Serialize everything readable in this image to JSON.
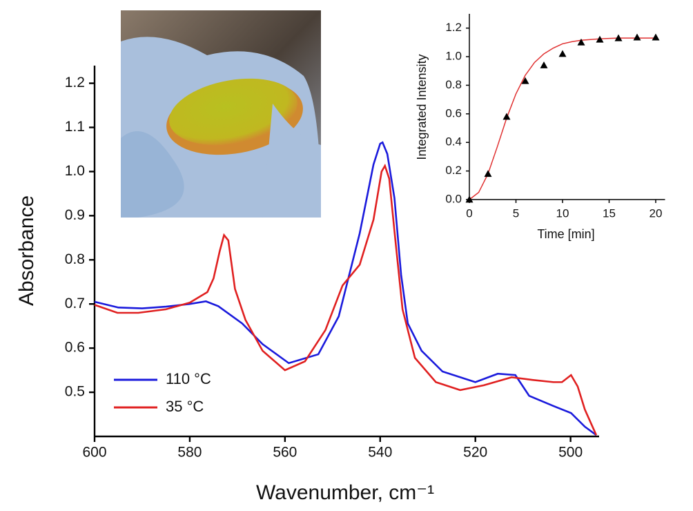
{
  "chart_data": [
    {
      "type": "line",
      "x_label": "Wavenumber, cm⁻¹",
      "y_label": "Absorbance",
      "xlim": [
        600,
        494
      ],
      "ylim": [
        0.4,
        1.24
      ],
      "xticks": [
        600,
        580,
        560,
        540,
        520,
        500
      ],
      "yticks": [
        0.5,
        0.6,
        0.7,
        0.8,
        0.9,
        {
          "value": 1.0,
          "label": "1.0"
        },
        1.1,
        1.2
      ],
      "legend": "lower left",
      "series": [
        {
          "name": "110 °C",
          "color": "#1a1adc",
          "x": [
            600,
            595,
            590,
            585,
            580,
            576.6,
            574,
            569,
            564.7,
            559.2,
            553,
            548.7,
            544.3,
            541.4,
            540,
            539.5,
            538.5,
            537,
            535.6,
            534.2,
            531.3,
            526.9,
            520,
            515.3,
            511.6,
            508.7,
            503.6,
            499.9,
            497,
            494.6
          ],
          "values": [
            0.705,
            0.692,
            0.69,
            0.694,
            0.7,
            0.706,
            0.695,
            0.656,
            0.609,
            0.566,
            0.586,
            0.672,
            0.86,
            1.016,
            1.063,
            1.066,
            1.04,
            0.94,
            0.766,
            0.656,
            0.594,
            0.547,
            0.523,
            0.542,
            0.539,
            0.492,
            0.469,
            0.453,
            0.422,
            0.403
          ]
        },
        {
          "name": "35 °C",
          "color": "#e02020",
          "x": [
            600,
            595.2,
            590.8,
            585,
            580,
            576.3,
            575,
            573.7,
            572.8,
            571.9,
            570.5,
            568.3,
            564.7,
            560,
            555.8,
            551.5,
            547.9,
            544.3,
            541.4,
            539.7,
            539,
            538.1,
            536.8,
            535.3,
            532.7,
            528.3,
            523.2,
            518.2,
            512.4,
            508,
            503.6,
            501.8,
            499.9,
            498.5,
            497,
            494.6
          ],
          "values": [
            0.698,
            0.68,
            0.68,
            0.688,
            0.703,
            0.727,
            0.758,
            0.82,
            0.856,
            0.844,
            0.734,
            0.664,
            0.594,
            0.55,
            0.57,
            0.641,
            0.742,
            0.789,
            0.891,
            1.0,
            1.013,
            0.984,
            0.844,
            0.688,
            0.578,
            0.523,
            0.505,
            0.516,
            0.534,
            0.528,
            0.523,
            0.523,
            0.539,
            0.513,
            0.461,
            0.403
          ]
        }
      ]
    },
    {
      "type": "scatter",
      "x_label": "Time [min]",
      "y_label": "Integrated Intensity",
      "xlim": [
        0,
        21
      ],
      "ylim": [
        0,
        1.3
      ],
      "xticks": [
        0,
        5,
        10,
        15,
        20
      ],
      "yticks": [
        {
          "value": 0,
          "label": "0.0"
        },
        0.2,
        0.4,
        0.6,
        0.8,
        {
          "value": 1.0,
          "label": "1.0"
        },
        1.2
      ],
      "series": [
        {
          "color": "#e03030",
          "mode": "line",
          "x": [
            0,
            1,
            2,
            3,
            4,
            5,
            6,
            7,
            8,
            9,
            10,
            11,
            12,
            13,
            14,
            15,
            16,
            17,
            18,
            19,
            20
          ],
          "values": [
            0,
            0.05,
            0.18,
            0.37,
            0.57,
            0.74,
            0.87,
            0.96,
            1.02,
            1.06,
            1.09,
            1.105,
            1.115,
            1.12,
            1.125,
            1.128,
            1.13,
            1.13,
            1.13,
            1.13,
            1.13
          ]
        },
        {
          "color": "#000000",
          "mode": "triangle",
          "x": [
            0,
            2,
            4,
            6,
            8,
            10,
            12,
            14,
            16,
            18,
            20
          ],
          "values": [
            0,
            0.18,
            0.58,
            0.83,
            0.94,
            1.02,
            1.1,
            1.12,
            1.13,
            1.135,
            1.135
          ]
        }
      ]
    }
  ]
}
